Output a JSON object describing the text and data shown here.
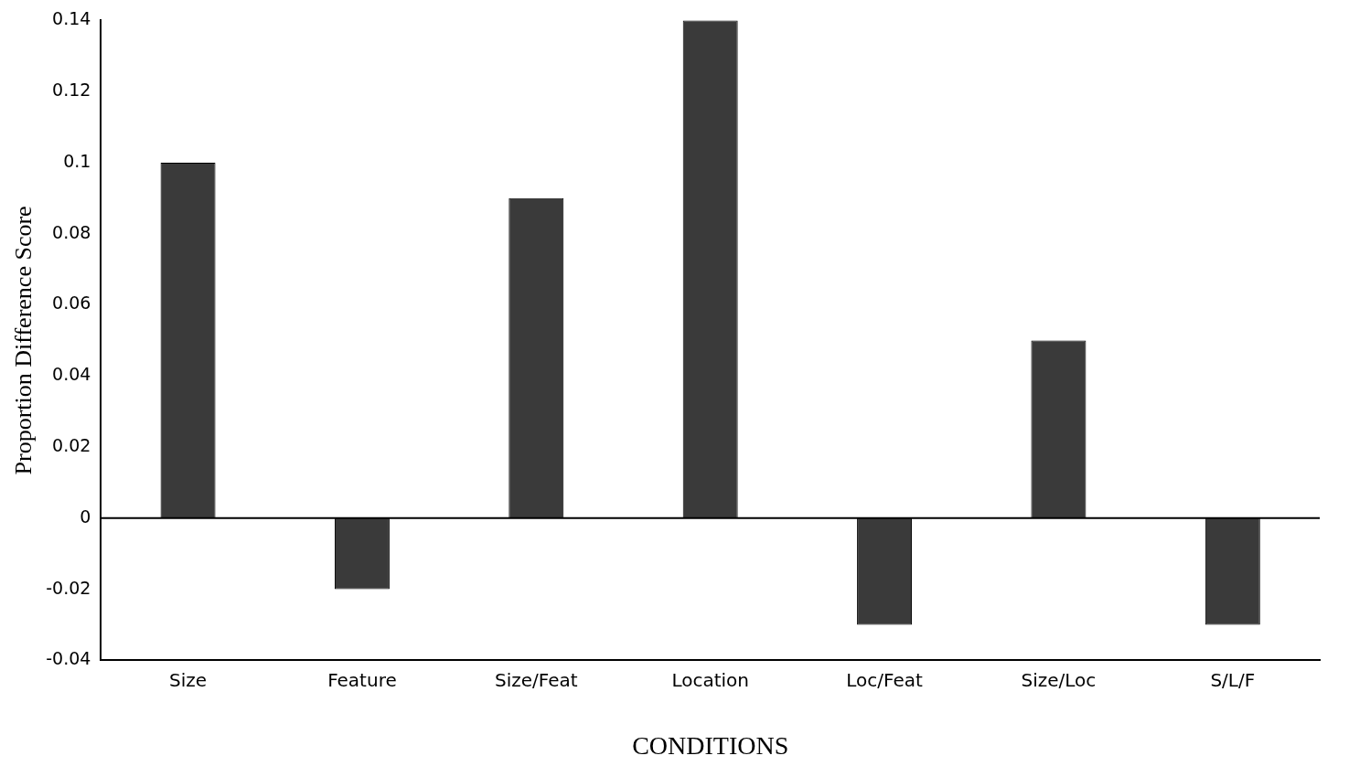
{
  "chart_data": {
    "type": "bar",
    "xlabel": "CONDITIONS",
    "ylabel": "Proportion Difference Score",
    "categories": [
      "Size",
      "Feature",
      "Size/Feat",
      "Location",
      "Loc/Feat",
      "Size/Loc",
      "S/L/F"
    ],
    "values": [
      0.1,
      -0.02,
      0.09,
      0.14,
      -0.03,
      0.05,
      -0.03
    ],
    "color": "#3a3a3a",
    "ylim": [
      -0.04,
      0.14
    ],
    "yticks": [
      -0.04,
      -0.02,
      0,
      0.02,
      0.04,
      0.06,
      0.08,
      0.1,
      0.12,
      0.14
    ],
    "ref_lines": [
      {
        "axis": "y",
        "value": 0
      }
    ],
    "grid": false,
    "legend": false
  }
}
